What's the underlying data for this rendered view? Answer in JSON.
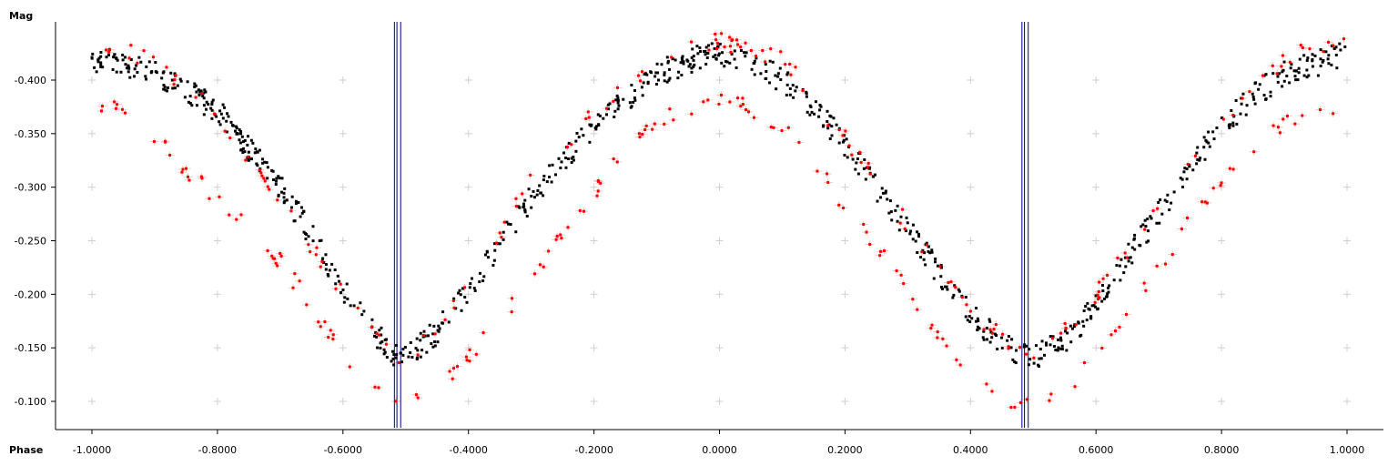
{
  "chart_data": {
    "type": "scatter",
    "title": "",
    "ylabel": "Mag",
    "xlabel": "Phase",
    "xlim": [
      -1.1,
      1.0
    ],
    "ylim": [
      -0.083,
      -0.447
    ],
    "y_axis_inverted": true,
    "grid": true,
    "grid_style": "plus-markers",
    "x_ticks": [
      -1.0,
      -0.8,
      -0.6,
      -0.4,
      -0.2,
      0.0,
      0.2,
      0.4,
      0.6,
      0.8,
      1.0
    ],
    "x_tick_labels": [
      "-1.0000",
      "-0.8000",
      "-0.6000",
      "-0.4000",
      "-0.2000",
      "0.0000",
      "0.2000",
      "0.4000",
      "0.6000",
      "0.8000",
      "1.0000"
    ],
    "y_ticks": [
      -0.4,
      -0.35,
      -0.3,
      -0.25,
      -0.2,
      -0.15,
      -0.1
    ],
    "y_tick_labels": [
      "-0.400",
      "-0.350",
      "-0.300",
      "-0.250",
      "-0.200",
      "-0.150",
      "-0.100"
    ],
    "minima_markers": [
      -0.518,
      -0.514,
      -0.508,
      0.482,
      0.486,
      0.492
    ],
    "colors": {
      "series_a": "#000000",
      "series_b": "#ff0000",
      "error_bar": "#f0c8c8",
      "marker_line": "#00008b",
      "grid": "#d0d0d0",
      "axis": "#000000"
    },
    "series": [
      {
        "color": "#000000",
        "points": [
          [
            -1.0,
            -0.42
          ],
          [
            -0.95,
            -0.415
          ],
          [
            -0.9,
            -0.405
          ],
          [
            -0.85,
            -0.39
          ],
          [
            -0.8,
            -0.372
          ],
          [
            -0.75,
            -0.335
          ],
          [
            -0.7,
            -0.3
          ],
          [
            -0.65,
            -0.255
          ],
          [
            -0.6,
            -0.205
          ],
          [
            -0.56,
            -0.17
          ],
          [
            -0.52,
            -0.145
          ],
          [
            -0.5,
            -0.142
          ],
          [
            -0.48,
            -0.15
          ],
          [
            -0.45,
            -0.165
          ],
          [
            -0.42,
            -0.19
          ],
          [
            -0.38,
            -0.22
          ],
          [
            -0.34,
            -0.255
          ],
          [
            -0.3,
            -0.29
          ],
          [
            -0.25,
            -0.325
          ],
          [
            -0.2,
            -0.355
          ],
          [
            -0.15,
            -0.38
          ],
          [
            -0.1,
            -0.405
          ],
          [
            -0.05,
            -0.418
          ],
          [
            0.0,
            -0.425
          ],
          [
            0.05,
            -0.418
          ],
          [
            0.1,
            -0.4
          ],
          [
            0.15,
            -0.375
          ],
          [
            0.2,
            -0.34
          ],
          [
            0.25,
            -0.3
          ],
          [
            0.3,
            -0.26
          ],
          [
            0.35,
            -0.22
          ],
          [
            0.4,
            -0.18
          ],
          [
            0.45,
            -0.155
          ],
          [
            0.48,
            -0.145
          ],
          [
            0.5,
            -0.142
          ],
          [
            0.53,
            -0.15
          ],
          [
            0.56,
            -0.16
          ],
          [
            0.6,
            -0.19
          ],
          [
            0.65,
            -0.235
          ],
          [
            0.7,
            -0.275
          ],
          [
            0.75,
            -0.32
          ],
          [
            0.8,
            -0.355
          ],
          [
            0.85,
            -0.385
          ],
          [
            0.9,
            -0.405
          ],
          [
            0.95,
            -0.415
          ],
          [
            1.0,
            -0.425
          ]
        ]
      },
      {
        "color": "#ff0000",
        "points": [
          [
            -1.0,
            -0.435
          ],
          [
            -0.95,
            -0.43
          ],
          [
            -0.9,
            -0.415
          ],
          [
            -0.85,
            -0.395
          ],
          [
            -0.8,
            -0.37
          ],
          [
            -0.6,
            -0.2
          ],
          [
            -0.5,
            -0.135
          ],
          [
            -0.4,
            -0.21
          ],
          [
            -0.3,
            -0.305
          ],
          [
            -0.2,
            -0.37
          ],
          [
            -0.1,
            -0.42
          ],
          [
            0.0,
            -0.437
          ],
          [
            0.1,
            -0.42
          ],
          [
            0.2,
            -0.345
          ],
          [
            0.3,
            -0.265
          ],
          [
            0.4,
            -0.185
          ],
          [
            0.5,
            -0.135
          ],
          [
            0.6,
            -0.2
          ],
          [
            0.7,
            -0.285
          ],
          [
            0.8,
            -0.365
          ],
          [
            0.9,
            -0.42
          ],
          [
            1.0,
            -0.44
          ],
          [
            -1.0,
            -0.38
          ],
          [
            -0.95,
            -0.37
          ],
          [
            -0.9,
            -0.345
          ],
          [
            -0.85,
            -0.315
          ],
          [
            -0.8,
            -0.29
          ],
          [
            -0.75,
            -0.265
          ],
          [
            -0.7,
            -0.23
          ],
          [
            -0.65,
            -0.19
          ],
          [
            -0.6,
            -0.145
          ],
          [
            -0.55,
            -0.115
          ],
          [
            -0.52,
            -0.095
          ],
          [
            -0.48,
            -0.1
          ],
          [
            -0.45,
            -0.11
          ],
          [
            -0.4,
            -0.14
          ],
          [
            -0.35,
            -0.175
          ],
          [
            -0.3,
            -0.215
          ],
          [
            -0.25,
            -0.26
          ],
          [
            -0.2,
            -0.295
          ],
          [
            -0.15,
            -0.34
          ],
          [
            -0.1,
            -0.362
          ],
          [
            -0.05,
            -0.372
          ],
          [
            0.0,
            -0.38
          ],
          [
            0.05,
            -0.375
          ],
          [
            0.1,
            -0.355
          ],
          [
            0.15,
            -0.325
          ],
          [
            0.2,
            -0.28
          ],
          [
            0.25,
            -0.245
          ],
          [
            0.3,
            -0.205
          ],
          [
            0.35,
            -0.165
          ],
          [
            0.4,
            -0.13
          ],
          [
            0.45,
            -0.105
          ],
          [
            0.48,
            -0.095
          ],
          [
            0.52,
            -0.1
          ],
          [
            0.55,
            -0.11
          ],
          [
            0.6,
            -0.14
          ],
          [
            0.65,
            -0.185
          ],
          [
            0.7,
            -0.225
          ],
          [
            0.75,
            -0.27
          ],
          [
            0.8,
            -0.305
          ],
          [
            0.85,
            -0.34
          ],
          [
            0.9,
            -0.36
          ],
          [
            0.95,
            -0.365
          ],
          [
            1.0,
            -0.38
          ]
        ]
      }
    ]
  }
}
